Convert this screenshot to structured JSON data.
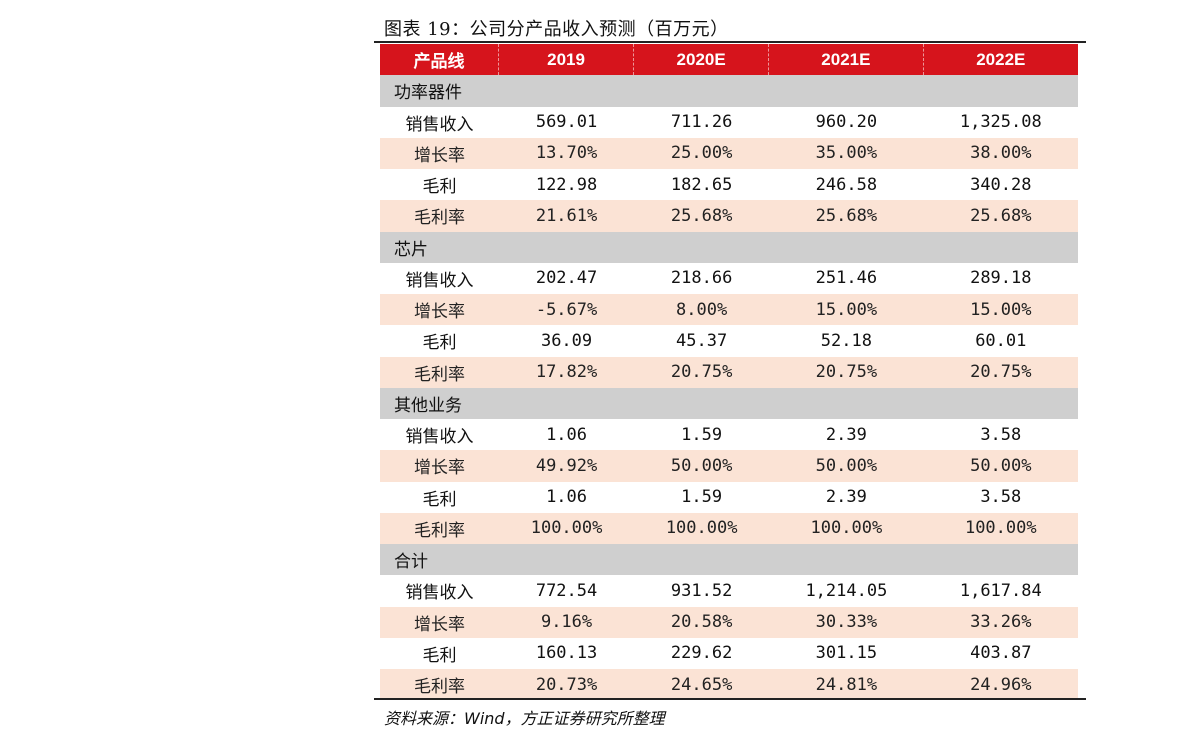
{
  "caption": "图表 19：公司分产品收入预测（百万元）",
  "header": [
    "产品线",
    "2019",
    "2020E",
    "2021E",
    "2022E"
  ],
  "sections": [
    {
      "title": "功率器件",
      "rows": [
        {
          "label": "销售收入",
          "values": [
            "569.01",
            "711.26",
            "960.20",
            "1,325.08"
          ]
        },
        {
          "label": "增长率",
          "values": [
            "13.70%",
            "25.00%",
            "35.00%",
            "38.00%"
          ]
        },
        {
          "label": "毛利",
          "values": [
            "122.98",
            "182.65",
            "246.58",
            "340.28"
          ]
        },
        {
          "label": "毛利率",
          "values": [
            "21.61%",
            "25.68%",
            "25.68%",
            "25.68%"
          ]
        }
      ]
    },
    {
      "title": "芯片",
      "rows": [
        {
          "label": "销售收入",
          "values": [
            "202.47",
            "218.66",
            "251.46",
            "289.18"
          ]
        },
        {
          "label": "增长率",
          "values": [
            "-5.67%",
            "8.00%",
            "15.00%",
            "15.00%"
          ]
        },
        {
          "label": "毛利",
          "values": [
            "36.09",
            "45.37",
            "52.18",
            "60.01"
          ]
        },
        {
          "label": "毛利率",
          "values": [
            "17.82%",
            "20.75%",
            "20.75%",
            "20.75%"
          ]
        }
      ]
    },
    {
      "title": "其他业务",
      "rows": [
        {
          "label": "销售收入",
          "values": [
            "1.06",
            "1.59",
            "2.39",
            "3.58"
          ]
        },
        {
          "label": "增长率",
          "values": [
            "49.92%",
            "50.00%",
            "50.00%",
            "50.00%"
          ]
        },
        {
          "label": "毛利",
          "values": [
            "1.06",
            "1.59",
            "2.39",
            "3.58"
          ]
        },
        {
          "label": "毛利率",
          "values": [
            "100.00%",
            "100.00%",
            "100.00%",
            "100.00%"
          ]
        }
      ]
    },
    {
      "title": "合计",
      "rows": [
        {
          "label": "销售收入",
          "values": [
            "772.54",
            "931.52",
            "1,214.05",
            "1,617.84"
          ]
        },
        {
          "label": "增长率",
          "values": [
            "9.16%",
            "20.58%",
            "30.33%",
            "33.26%"
          ]
        },
        {
          "label": "毛利",
          "values": [
            "160.13",
            "229.62",
            "301.15",
            "403.87"
          ]
        },
        {
          "label": "毛利率",
          "values": [
            "20.73%",
            "24.65%",
            "24.81%",
            "24.96%"
          ]
        }
      ]
    }
  ],
  "source": "资料来源：Wind，方正证券研究所整理",
  "colors": {
    "header_bg": "#d6141c",
    "section_bg": "#cfcfcf",
    "alt_row_bg": "#fbe3d5"
  }
}
